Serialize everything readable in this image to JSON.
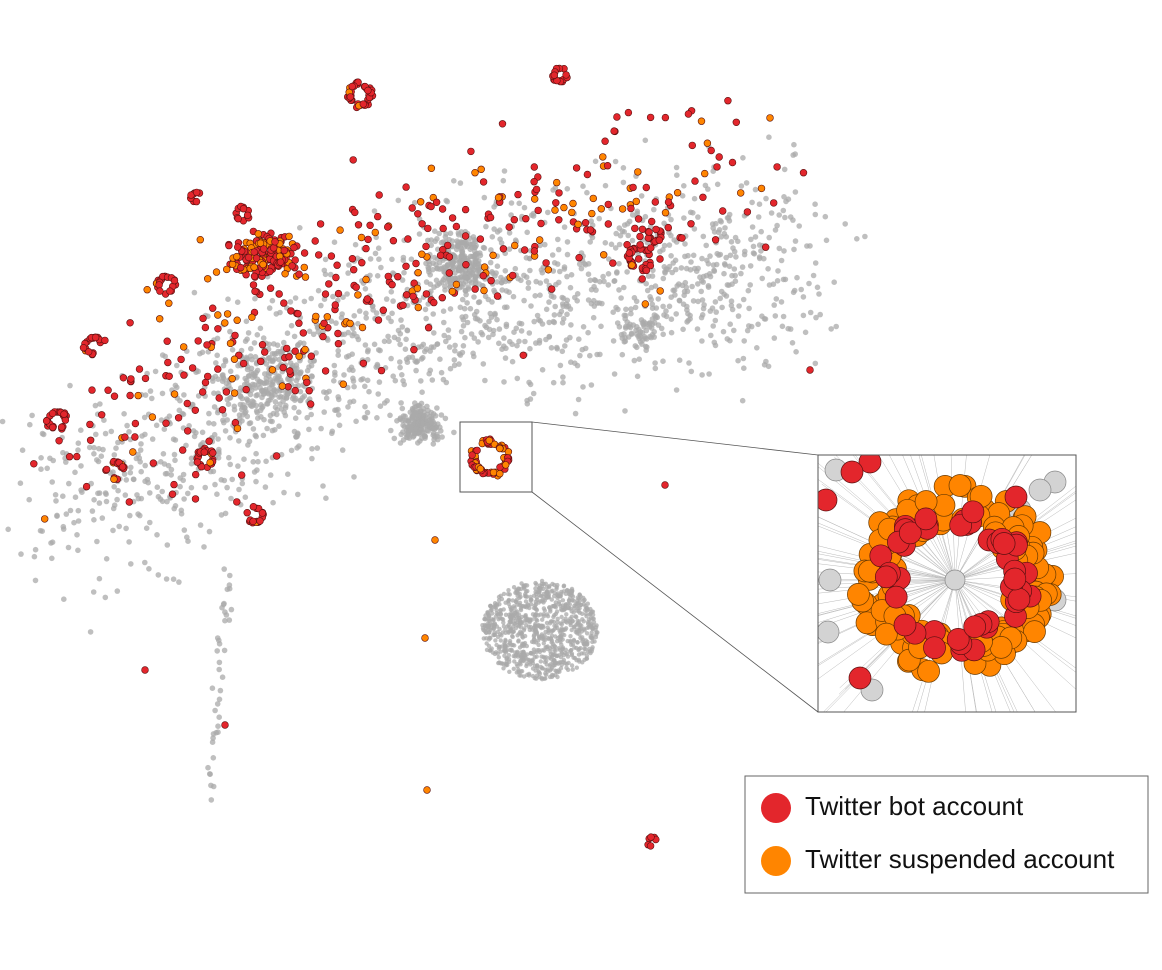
{
  "legend": {
    "items": [
      {
        "label": "Twitter bot account",
        "color": "#e3262c"
      },
      {
        "label": "Twitter suspended account",
        "color": "#ff8500"
      }
    ]
  }
}
